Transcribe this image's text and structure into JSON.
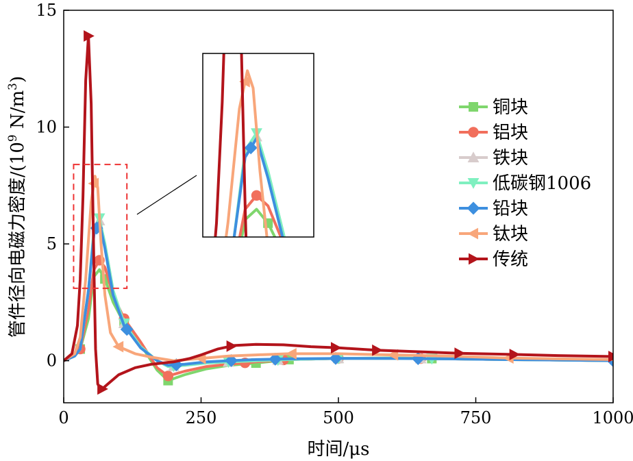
{
  "chart_data": {
    "type": "line",
    "title": "",
    "xlabel": "时间/μs",
    "ylabel_main": "管件径向电磁力密度/(10",
    "ylabel_sup": "9",
    "ylabel_mid": " N/m",
    "ylabel_sup2": "3",
    "ylabel_end": ")",
    "xlim": [
      0,
      1000
    ],
    "ylim": [
      -1.8,
      15
    ],
    "xticks": [
      0,
      250,
      500,
      750,
      1000
    ],
    "yticks": [
      0,
      5,
      10,
      15
    ],
    "grid": false,
    "legend_position": "right",
    "inset": {
      "source_xlim": [
        18,
        115
      ],
      "source_ylim": [
        3.1,
        8.4
      ]
    },
    "series": [
      {
        "name": "铜块",
        "color": "#7fd66d",
        "marker": "square",
        "x": [
          0,
          20,
          30,
          45,
          55,
          65,
          75,
          90,
          110,
          140,
          170,
          190,
          220,
          260,
          300,
          350,
          410,
          500,
          600,
          700,
          800,
          900,
          1000
        ],
        "y": [
          0,
          0.2,
          0.5,
          1.8,
          3.6,
          3.9,
          3.5,
          2.5,
          1.6,
          0.7,
          -0.4,
          -0.85,
          -0.6,
          -0.35,
          -0.2,
          -0.1,
          0.05,
          0.1,
          0.12,
          0.08,
          0.05,
          0.03,
          0
        ],
        "marker_x": [
          30,
          75,
          110,
          190,
          350,
          410,
          500,
          670
        ]
      },
      {
        "name": "铝块",
        "color": "#f16f5c",
        "marker": "circle",
        "x": [
          0,
          20,
          30,
          45,
          55,
          65,
          75,
          90,
          110,
          140,
          170,
          190,
          220,
          260,
          300,
          350,
          410,
          500,
          600,
          700,
          800,
          900,
          1000
        ],
        "y": [
          0,
          0.2,
          0.5,
          2.2,
          3.9,
          4.3,
          4.0,
          2.8,
          1.8,
          0.8,
          -0.3,
          -0.65,
          -0.45,
          -0.25,
          -0.15,
          -0.05,
          0.05,
          0.1,
          0.1,
          0.08,
          0.05,
          0.03,
          0
        ],
        "marker_x": [
          30,
          65,
          110,
          190,
          330,
          400,
          500,
          650
        ]
      },
      {
        "name": "铁块",
        "color": "#d8cccc",
        "marker": "triangle-up",
        "x": [
          0,
          20,
          30,
          45,
          55,
          65,
          75,
          90,
          110,
          140,
          170,
          190,
          220,
          260,
          300,
          350,
          410,
          500,
          600,
          700,
          800,
          900,
          1000
        ],
        "y": [
          0,
          0.2,
          0.5,
          3.0,
          5.5,
          6.0,
          5.0,
          3.0,
          1.6,
          0.6,
          0.0,
          -0.25,
          -0.2,
          -0.1,
          -0.05,
          0.0,
          0.05,
          0.1,
          0.1,
          0.08,
          0.05,
          0.03,
          0
        ],
        "marker_x": [
          65,
          110,
          200,
          300,
          390,
          500,
          650
        ]
      },
      {
        "name": "低碳钢1006",
        "color": "#7ff0c0",
        "marker": "triangle-down",
        "x": [
          0,
          20,
          30,
          45,
          55,
          65,
          75,
          90,
          110,
          140,
          170,
          190,
          220,
          260,
          300,
          350,
          410,
          500,
          600,
          700,
          800,
          900,
          1000
        ],
        "y": [
          0,
          0.2,
          0.5,
          3.0,
          5.6,
          6.1,
          5.0,
          3.0,
          1.6,
          0.6,
          0.0,
          -0.25,
          -0.2,
          -0.1,
          -0.05,
          0.0,
          0.05,
          0.1,
          0.1,
          0.08,
          0.05,
          0.03,
          0
        ],
        "marker_x": [
          65,
          110,
          200,
          300,
          390,
          500,
          670
        ]
      },
      {
        "name": "铅块",
        "color": "#3d8fdf",
        "marker": "diamond",
        "x": [
          0,
          20,
          30,
          45,
          55,
          65,
          75,
          90,
          110,
          140,
          170,
          190,
          220,
          260,
          300,
          350,
          410,
          500,
          600,
          700,
          800,
          900,
          1000
        ],
        "y": [
          0,
          0.2,
          0.5,
          3.0,
          5.4,
          5.95,
          4.8,
          2.8,
          1.5,
          0.55,
          0.0,
          -0.2,
          -0.15,
          -0.05,
          0.0,
          0.05,
          0.08,
          0.1,
          0.1,
          0.08,
          0.05,
          0.03,
          0
        ],
        "marker_x": [
          60,
          115,
          205,
          305,
          385,
          495,
          645,
          1000
        ]
      },
      {
        "name": "钛块",
        "color": "#f8a67a",
        "marker": "triangle-left",
        "x": [
          0,
          20,
          30,
          40,
          50,
          57,
          62,
          68,
          75,
          85,
          100,
          130,
          160,
          200,
          250,
          300,
          350,
          410,
          500,
          600,
          700,
          800,
          900,
          1000
        ],
        "y": [
          0,
          0.3,
          1.0,
          3.5,
          6.8,
          7.9,
          7.4,
          5.0,
          2.8,
          1.2,
          0.6,
          0.3,
          0.15,
          0.0,
          0.1,
          0.2,
          0.25,
          0.3,
          0.3,
          0.25,
          0.2,
          0.12,
          0.08,
          0.05
        ],
        "marker_x": [
          55,
          100,
          250,
          415,
          600,
          810
        ]
      },
      {
        "name": "传统",
        "color": "#b3141b",
        "marker": "triangle-right",
        "x": [
          0,
          15,
          25,
          30,
          35,
          40,
          45,
          50,
          55,
          58,
          62,
          68,
          80,
          100,
          130,
          160,
          200,
          230,
          250,
          280,
          310,
          350,
          400,
          450,
          500,
          570,
          650,
          720,
          800,
          900,
          1000
        ],
        "y": [
          0,
          0.3,
          1.5,
          3.5,
          7.0,
          12.0,
          13.9,
          11.0,
          4.0,
          0.5,
          -1.0,
          -1.25,
          -1.0,
          -0.6,
          -0.3,
          -0.15,
          -0.05,
          0.1,
          0.25,
          0.5,
          0.65,
          0.7,
          0.68,
          0.6,
          0.55,
          0.45,
          0.38,
          0.32,
          0.28,
          0.22,
          0.18
        ],
        "marker_x": [
          45,
          70,
          305,
          495,
          570,
          720,
          820,
          1000
        ]
      }
    ]
  }
}
